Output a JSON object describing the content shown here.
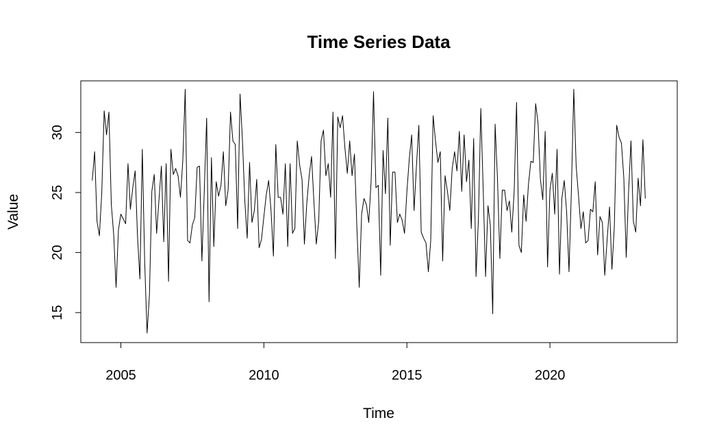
{
  "chart_data": {
    "type": "line",
    "title": "Time Series Data",
    "xlabel": "Time",
    "ylabel": "Value",
    "xlim": [
      2003.6,
      2024.45
    ],
    "ylim": [
      12.5,
      34.3
    ],
    "xticks": [
      "2005",
      "2010",
      "2015",
      "2020"
    ],
    "yticks": [
      "15",
      "20",
      "25",
      "30"
    ],
    "grid": false,
    "line_color": "#000000",
    "x_start": 2004,
    "x_frequency": 12,
    "series": [
      {
        "values": [
          26.0,
          28.4,
          22.6,
          21.4,
          25.0,
          31.8,
          29.8,
          31.7,
          24.0,
          21.5,
          17.1,
          21.9,
          23.2,
          22.8,
          22.4,
          27.4,
          23.6,
          25.4,
          26.8,
          21.3,
          17.8,
          28.6,
          19.2,
          13.3,
          16.5,
          25.1,
          26.5,
          21.6,
          24.4,
          27.2,
          20.9,
          27.4,
          17.6,
          28.6,
          26.5,
          27.0,
          26.4,
          24.6,
          27.7,
          33.6,
          21.0,
          20.8,
          22.3,
          22.9,
          27.1,
          27.2,
          19.3,
          25.2,
          31.2,
          15.9,
          27.9,
          20.5,
          25.9,
          24.7,
          25.6,
          28.4,
          23.9,
          25.2,
          31.7,
          29.3,
          29.0,
          22.0,
          33.2,
          29.4,
          24.3,
          21.2,
          27.5,
          22.5,
          23.5,
          26.1,
          20.4,
          21.1,
          23.0,
          24.8,
          26.0,
          23.5,
          19.7,
          29.0,
          24.6,
          24.6,
          23.2,
          27.4,
          20.5,
          27.4,
          21.6,
          22.0,
          29.3,
          27.3,
          26.1,
          20.7,
          24.1,
          26.4,
          28.0,
          24.2,
          20.7,
          22.6,
          29.3,
          30.2,
          26.4,
          27.4,
          24.6,
          31.7,
          19.5,
          31.3,
          30.4,
          31.4,
          28.7,
          26.6,
          29.3,
          26.4,
          28.2,
          22.2,
          17.1,
          23.2,
          24.5,
          24.0,
          22.5,
          26.0,
          33.4,
          25.4,
          25.6,
          18.1,
          28.5,
          24.9,
          31.2,
          20.6,
          26.7,
          26.7,
          22.5,
          23.2,
          22.7,
          21.6,
          25.1,
          27.8,
          29.8,
          23.5,
          27.2,
          30.6,
          21.7,
          21.2,
          20.8,
          18.4,
          21.0,
          31.4,
          29.3,
          27.5,
          28.4,
          19.3,
          26.4,
          25.1,
          23.5,
          27.0,
          28.4,
          26.8,
          30.1,
          25.1,
          29.8,
          25.9,
          27.7,
          22.0,
          29.5,
          18.0,
          22.8,
          32.0,
          25.3,
          18.0,
          23.9,
          22.3,
          14.9,
          30.7,
          26.1,
          19.5,
          25.2,
          25.2,
          23.5,
          24.3,
          21.7,
          25.1,
          32.5,
          20.6,
          20.0,
          24.8,
          22.6,
          25.7,
          27.6,
          27.5,
          32.4,
          30.8,
          26.1,
          24.4,
          30.1,
          18.8,
          25.2,
          26.6,
          23.2,
          28.6,
          18.2,
          24.5,
          26.0,
          23.4,
          18.4,
          25.2,
          33.6,
          27.2,
          24.7,
          22.0,
          23.4,
          20.8,
          21.0,
          23.6,
          23.4,
          25.9,
          19.8,
          23.0,
          22.5,
          18.1,
          21.1,
          23.8,
          18.6,
          22.1,
          30.6,
          29.6,
          29.1,
          26.2,
          19.6,
          25.1,
          29.3,
          22.6,
          21.7,
          26.2,
          23.9,
          29.4,
          24.5
        ]
      }
    ]
  }
}
